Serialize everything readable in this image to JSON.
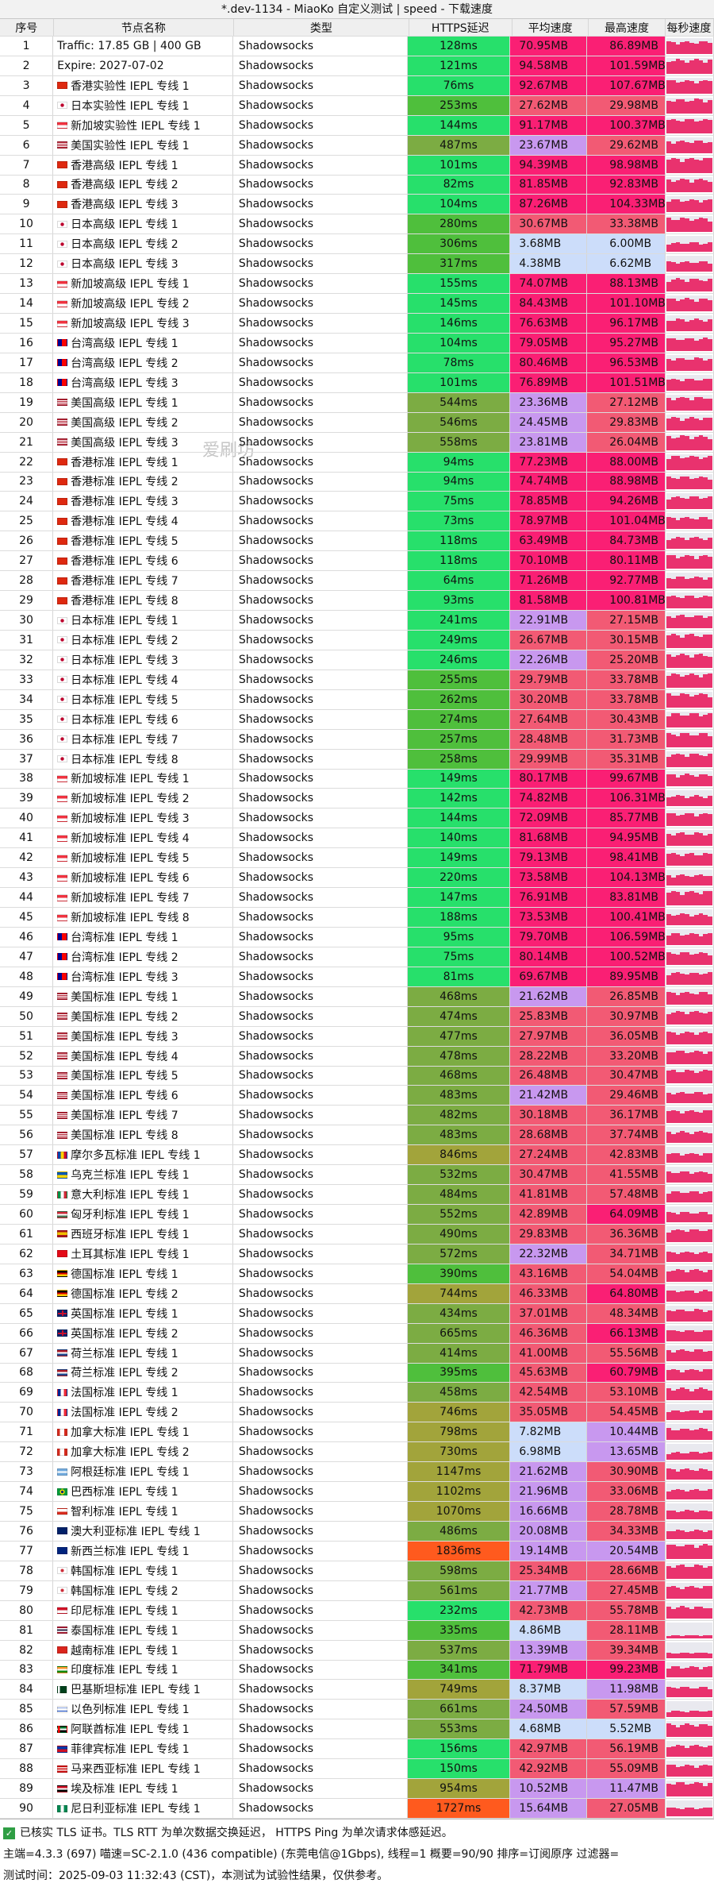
{
  "window": {
    "title": "*.dev-1134 - MiaoKo 自定义测试 | speed - 下载速度"
  },
  "headers": [
    "序号",
    "节点名称",
    "类型",
    "HTTPS延迟",
    "平均速度",
    "最高速度",
    "每秒速度"
  ],
  "colors": {
    "speed_high": "#fa1f74",
    "speed_mid": "#f25a74",
    "speed_low": "#c898ef",
    "speed_vlow": "#ccddfa",
    "lat_fast": "#27e06b",
    "lat_mid": "#4fbf3c",
    "lat_slow": "#7cac43",
    "lat_vslow": "#a2a43b",
    "lat_bad": "#ff5a1e",
    "spark": "#e9326e"
  },
  "rows": [
    {
      "idx": "1",
      "flag": "",
      "name": "Traffic: 17.85 GB | 400 GB",
      "type": "Shadowsocks",
      "lat": "128ms",
      "avg": "70.95MB",
      "max": "86.89MB"
    },
    {
      "idx": "2",
      "flag": "",
      "name": "Expire: 2027-07-02",
      "type": "Shadowsocks",
      "lat": "121ms",
      "avg": "94.58MB",
      "max": "101.59MB"
    },
    {
      "idx": "3",
      "flag": "hk",
      "name": "香港实验性 IEPL 专线 1",
      "type": "Shadowsocks",
      "lat": "76ms",
      "avg": "92.67MB",
      "max": "107.67MB"
    },
    {
      "idx": "4",
      "flag": "jp",
      "name": "日本实验性 IEPL 专线 1",
      "type": "Shadowsocks",
      "lat": "253ms",
      "avg": "27.62MB",
      "max": "29.98MB"
    },
    {
      "idx": "5",
      "flag": "sg",
      "name": "新加坡实验性 IEPL 专线 1",
      "type": "Shadowsocks",
      "lat": "144ms",
      "avg": "91.17MB",
      "max": "100.37MB"
    },
    {
      "idx": "6",
      "flag": "us",
      "name": "美国实验性 IEPL 专线 1",
      "type": "Shadowsocks",
      "lat": "487ms",
      "avg": "23.67MB",
      "max": "29.62MB"
    },
    {
      "idx": "7",
      "flag": "hk",
      "name": "香港高级 IEPL 专线 1",
      "type": "Shadowsocks",
      "lat": "101ms",
      "avg": "94.39MB",
      "max": "98.98MB"
    },
    {
      "idx": "8",
      "flag": "hk",
      "name": "香港高级 IEPL 专线 2",
      "type": "Shadowsocks",
      "lat": "82ms",
      "avg": "81.85MB",
      "max": "92.83MB"
    },
    {
      "idx": "9",
      "flag": "hk",
      "name": "香港高级 IEPL 专线 3",
      "type": "Shadowsocks",
      "lat": "104ms",
      "avg": "87.26MB",
      "max": "104.33MB"
    },
    {
      "idx": "10",
      "flag": "jp",
      "name": "日本高级 IEPL 专线 1",
      "type": "Shadowsocks",
      "lat": "280ms",
      "avg": "30.67MB",
      "max": "33.38MB"
    },
    {
      "idx": "11",
      "flag": "jp",
      "name": "日本高级 IEPL 专线 2",
      "type": "Shadowsocks",
      "lat": "306ms",
      "avg": "3.68MB",
      "max": "6.00MB"
    },
    {
      "idx": "12",
      "flag": "jp",
      "name": "日本高级 IEPL 专线 3",
      "type": "Shadowsocks",
      "lat": "317ms",
      "avg": "4.38MB",
      "max": "6.62MB"
    },
    {
      "idx": "13",
      "flag": "sg",
      "name": "新加坡高级 IEPL 专线 1",
      "type": "Shadowsocks",
      "lat": "155ms",
      "avg": "74.07MB",
      "max": "88.13MB"
    },
    {
      "idx": "14",
      "flag": "sg",
      "name": "新加坡高级 IEPL 专线 2",
      "type": "Shadowsocks",
      "lat": "145ms",
      "avg": "84.43MB",
      "max": "101.10MB"
    },
    {
      "idx": "15",
      "flag": "sg",
      "name": "新加坡高级 IEPL 专线 3",
      "type": "Shadowsocks",
      "lat": "146ms",
      "avg": "76.63MB",
      "max": "96.17MB"
    },
    {
      "idx": "16",
      "flag": "tw",
      "name": "台湾高级 IEPL 专线 1",
      "type": "Shadowsocks",
      "lat": "104ms",
      "avg": "79.05MB",
      "max": "95.27MB"
    },
    {
      "idx": "17",
      "flag": "tw",
      "name": "台湾高级 IEPL 专线 2",
      "type": "Shadowsocks",
      "lat": "78ms",
      "avg": "80.46MB",
      "max": "96.53MB"
    },
    {
      "idx": "18",
      "flag": "tw",
      "name": "台湾高级 IEPL 专线 3",
      "type": "Shadowsocks",
      "lat": "101ms",
      "avg": "76.89MB",
      "max": "101.51MB"
    },
    {
      "idx": "19",
      "flag": "us",
      "name": "美国高级 IEPL 专线 1",
      "type": "Shadowsocks",
      "lat": "544ms",
      "avg": "23.36MB",
      "max": "27.12MB"
    },
    {
      "idx": "20",
      "flag": "us",
      "name": "美国高级 IEPL 专线 2",
      "type": "Shadowsocks",
      "lat": "546ms",
      "avg": "24.45MB",
      "max": "29.83MB"
    },
    {
      "idx": "21",
      "flag": "us",
      "name": "美国高级 IEPL 专线 3",
      "type": "Shadowsocks",
      "lat": "558ms",
      "avg": "23.81MB",
      "max": "26.04MB"
    },
    {
      "idx": "22",
      "flag": "hk",
      "name": "香港标准 IEPL 专线 1",
      "type": "Shadowsocks",
      "lat": "94ms",
      "avg": "77.23MB",
      "max": "88.00MB"
    },
    {
      "idx": "23",
      "flag": "hk",
      "name": "香港标准 IEPL 专线 2",
      "type": "Shadowsocks",
      "lat": "94ms",
      "avg": "74.74MB",
      "max": "88.98MB"
    },
    {
      "idx": "24",
      "flag": "hk",
      "name": "香港标准 IEPL 专线 3",
      "type": "Shadowsocks",
      "lat": "75ms",
      "avg": "78.85MB",
      "max": "94.26MB"
    },
    {
      "idx": "25",
      "flag": "hk",
      "name": "香港标准 IEPL 专线 4",
      "type": "Shadowsocks",
      "lat": "73ms",
      "avg": "78.97MB",
      "max": "101.04MB"
    },
    {
      "idx": "26",
      "flag": "hk",
      "name": "香港标准 IEPL 专线 5",
      "type": "Shadowsocks",
      "lat": "118ms",
      "avg": "63.49MB",
      "max": "84.73MB"
    },
    {
      "idx": "27",
      "flag": "hk",
      "name": "香港标准 IEPL 专线 6",
      "type": "Shadowsocks",
      "lat": "118ms",
      "avg": "70.10MB",
      "max": "80.11MB"
    },
    {
      "idx": "28",
      "flag": "hk",
      "name": "香港标准 IEPL 专线 7",
      "type": "Shadowsocks",
      "lat": "64ms",
      "avg": "71.26MB",
      "max": "92.77MB"
    },
    {
      "idx": "29",
      "flag": "hk",
      "name": "香港标准 IEPL 专线 8",
      "type": "Shadowsocks",
      "lat": "93ms",
      "avg": "81.58MB",
      "max": "100.81MB"
    },
    {
      "idx": "30",
      "flag": "jp",
      "name": "日本标准 IEPL 专线 1",
      "type": "Shadowsocks",
      "lat": "241ms",
      "avg": "22.91MB",
      "max": "27.15MB"
    },
    {
      "idx": "31",
      "flag": "jp",
      "name": "日本标准 IEPL 专线 2",
      "type": "Shadowsocks",
      "lat": "249ms",
      "avg": "26.67MB",
      "max": "30.15MB"
    },
    {
      "idx": "32",
      "flag": "jp",
      "name": "日本标准 IEPL 专线 3",
      "type": "Shadowsocks",
      "lat": "246ms",
      "avg": "22.26MB",
      "max": "25.20MB"
    },
    {
      "idx": "33",
      "flag": "jp",
      "name": "日本标准 IEPL 专线 4",
      "type": "Shadowsocks",
      "lat": "255ms",
      "avg": "29.79MB",
      "max": "33.78MB"
    },
    {
      "idx": "34",
      "flag": "jp",
      "name": "日本标准 IEPL 专线 5",
      "type": "Shadowsocks",
      "lat": "262ms",
      "avg": "30.20MB",
      "max": "33.78MB"
    },
    {
      "idx": "35",
      "flag": "jp",
      "name": "日本标准 IEPL 专线 6",
      "type": "Shadowsocks",
      "lat": "274ms",
      "avg": "27.64MB",
      "max": "30.43MB"
    },
    {
      "idx": "36",
      "flag": "jp",
      "name": "日本标准 IEPL 专线 7",
      "type": "Shadowsocks",
      "lat": "257ms",
      "avg": "28.48MB",
      "max": "31.73MB"
    },
    {
      "idx": "37",
      "flag": "jp",
      "name": "日本标准 IEPL 专线 8",
      "type": "Shadowsocks",
      "lat": "258ms",
      "avg": "29.99MB",
      "max": "35.31MB"
    },
    {
      "idx": "38",
      "flag": "sg",
      "name": "新加坡标准 IEPL 专线 1",
      "type": "Shadowsocks",
      "lat": "149ms",
      "avg": "80.17MB",
      "max": "99.67MB"
    },
    {
      "idx": "39",
      "flag": "sg",
      "name": "新加坡标准 IEPL 专线 2",
      "type": "Shadowsocks",
      "lat": "142ms",
      "avg": "74.82MB",
      "max": "106.31MB"
    },
    {
      "idx": "40",
      "flag": "sg",
      "name": "新加坡标准 IEPL 专线 3",
      "type": "Shadowsocks",
      "lat": "144ms",
      "avg": "72.09MB",
      "max": "85.77MB"
    },
    {
      "idx": "41",
      "flag": "sg",
      "name": "新加坡标准 IEPL 专线 4",
      "type": "Shadowsocks",
      "lat": "140ms",
      "avg": "81.68MB",
      "max": "94.95MB"
    },
    {
      "idx": "42",
      "flag": "sg",
      "name": "新加坡标准 IEPL 专线 5",
      "type": "Shadowsocks",
      "lat": "149ms",
      "avg": "79.13MB",
      "max": "98.41MB"
    },
    {
      "idx": "43",
      "flag": "sg",
      "name": "新加坡标准 IEPL 专线 6",
      "type": "Shadowsocks",
      "lat": "220ms",
      "avg": "73.58MB",
      "max": "104.13MB"
    },
    {
      "idx": "44",
      "flag": "sg",
      "name": "新加坡标准 IEPL 专线 7",
      "type": "Shadowsocks",
      "lat": "147ms",
      "avg": "76.91MB",
      "max": "83.81MB"
    },
    {
      "idx": "45",
      "flag": "sg",
      "name": "新加坡标准 IEPL 专线 8",
      "type": "Shadowsocks",
      "lat": "188ms",
      "avg": "73.53MB",
      "max": "100.41MB"
    },
    {
      "idx": "46",
      "flag": "tw",
      "name": "台湾标准 IEPL 专线 1",
      "type": "Shadowsocks",
      "lat": "95ms",
      "avg": "79.70MB",
      "max": "106.59MB"
    },
    {
      "idx": "47",
      "flag": "tw",
      "name": "台湾标准 IEPL 专线 2",
      "type": "Shadowsocks",
      "lat": "75ms",
      "avg": "80.14MB",
      "max": "100.52MB"
    },
    {
      "idx": "48",
      "flag": "tw",
      "name": "台湾标准 IEPL 专线 3",
      "type": "Shadowsocks",
      "lat": "81ms",
      "avg": "69.67MB",
      "max": "89.95MB"
    },
    {
      "idx": "49",
      "flag": "us",
      "name": "美国标准 IEPL 专线 1",
      "type": "Shadowsocks",
      "lat": "468ms",
      "avg": "21.62MB",
      "max": "26.85MB"
    },
    {
      "idx": "50",
      "flag": "us",
      "name": "美国标准 IEPL 专线 2",
      "type": "Shadowsocks",
      "lat": "474ms",
      "avg": "25.83MB",
      "max": "30.97MB"
    },
    {
      "idx": "51",
      "flag": "us",
      "name": "美国标准 IEPL 专线 3",
      "type": "Shadowsocks",
      "lat": "477ms",
      "avg": "27.97MB",
      "max": "36.05MB"
    },
    {
      "idx": "52",
      "flag": "us",
      "name": "美国标准 IEPL 专线 4",
      "type": "Shadowsocks",
      "lat": "478ms",
      "avg": "28.22MB",
      "max": "33.20MB"
    },
    {
      "idx": "53",
      "flag": "us",
      "name": "美国标准 IEPL 专线 5",
      "type": "Shadowsocks",
      "lat": "468ms",
      "avg": "26.48MB",
      "max": "30.47MB"
    },
    {
      "idx": "54",
      "flag": "us",
      "name": "美国标准 IEPL 专线 6",
      "type": "Shadowsocks",
      "lat": "483ms",
      "avg": "21.42MB",
      "max": "29.46MB"
    },
    {
      "idx": "55",
      "flag": "us",
      "name": "美国标准 IEPL 专线 7",
      "type": "Shadowsocks",
      "lat": "482ms",
      "avg": "30.18MB",
      "max": "36.17MB"
    },
    {
      "idx": "56",
      "flag": "us",
      "name": "美国标准 IEPL 专线 8",
      "type": "Shadowsocks",
      "lat": "483ms",
      "avg": "28.68MB",
      "max": "37.74MB"
    },
    {
      "idx": "57",
      "flag": "md",
      "name": "摩尔多瓦标准 IEPL 专线 1",
      "type": "Shadowsocks",
      "lat": "846ms",
      "avg": "27.24MB",
      "max": "42.83MB"
    },
    {
      "idx": "58",
      "flag": "ua",
      "name": "乌克兰标准 IEPL 专线 1",
      "type": "Shadowsocks",
      "lat": "532ms",
      "avg": "30.47MB",
      "max": "41.55MB"
    },
    {
      "idx": "59",
      "flag": "it",
      "name": "意大利标准 IEPL 专线 1",
      "type": "Shadowsocks",
      "lat": "484ms",
      "avg": "41.81MB",
      "max": "57.48MB"
    },
    {
      "idx": "60",
      "flag": "hu",
      "name": "匈牙利标准 IEPL 专线 1",
      "type": "Shadowsocks",
      "lat": "552ms",
      "avg": "42.89MB",
      "max": "64.09MB"
    },
    {
      "idx": "61",
      "flag": "es",
      "name": "西班牙标准 IEPL 专线 1",
      "type": "Shadowsocks",
      "lat": "490ms",
      "avg": "29.83MB",
      "max": "36.36MB"
    },
    {
      "idx": "62",
      "flag": "tr",
      "name": "土耳其标准 IEPL 专线 1",
      "type": "Shadowsocks",
      "lat": "572ms",
      "avg": "22.32MB",
      "max": "34.71MB"
    },
    {
      "idx": "63",
      "flag": "de",
      "name": "德国标准 IEPL 专线 1",
      "type": "Shadowsocks",
      "lat": "390ms",
      "avg": "43.16MB",
      "max": "54.04MB"
    },
    {
      "idx": "64",
      "flag": "de",
      "name": "德国标准 IEPL 专线 2",
      "type": "Shadowsocks",
      "lat": "744ms",
      "avg": "46.33MB",
      "max": "64.80MB"
    },
    {
      "idx": "65",
      "flag": "gb",
      "name": "英国标准 IEPL 专线 1",
      "type": "Shadowsocks",
      "lat": "434ms",
      "avg": "37.01MB",
      "max": "48.34MB"
    },
    {
      "idx": "66",
      "flag": "gb",
      "name": "英国标准 IEPL 专线 2",
      "type": "Shadowsocks",
      "lat": "665ms",
      "avg": "46.36MB",
      "max": "66.13MB"
    },
    {
      "idx": "67",
      "flag": "nl",
      "name": "荷兰标准 IEPL 专线 1",
      "type": "Shadowsocks",
      "lat": "414ms",
      "avg": "41.00MB",
      "max": "55.56MB"
    },
    {
      "idx": "68",
      "flag": "nl",
      "name": "荷兰标准 IEPL 专线 2",
      "type": "Shadowsocks",
      "lat": "395ms",
      "avg": "45.63MB",
      "max": "60.79MB"
    },
    {
      "idx": "69",
      "flag": "fr",
      "name": "法国标准 IEPL 专线 1",
      "type": "Shadowsocks",
      "lat": "458ms",
      "avg": "42.54MB",
      "max": "53.10MB"
    },
    {
      "idx": "70",
      "flag": "fr",
      "name": "法国标准 IEPL 专线 2",
      "type": "Shadowsocks",
      "lat": "746ms",
      "avg": "35.05MB",
      "max": "54.45MB"
    },
    {
      "idx": "71",
      "flag": "ca",
      "name": "加拿大标准 IEPL 专线 1",
      "type": "Shadowsocks",
      "lat": "798ms",
      "avg": "7.82MB",
      "max": "10.44MB"
    },
    {
      "idx": "72",
      "flag": "ca",
      "name": "加拿大标准 IEPL 专线 2",
      "type": "Shadowsocks",
      "lat": "730ms",
      "avg": "6.98MB",
      "max": "13.65MB"
    },
    {
      "idx": "73",
      "flag": "ar",
      "name": "阿根廷标准 IEPL 专线 1",
      "type": "Shadowsocks",
      "lat": "1147ms",
      "avg": "21.62MB",
      "max": "30.90MB"
    },
    {
      "idx": "74",
      "flag": "br",
      "name": "巴西标准 IEPL 专线 1",
      "type": "Shadowsocks",
      "lat": "1102ms",
      "avg": "21.96MB",
      "max": "33.06MB"
    },
    {
      "idx": "75",
      "flag": "cl",
      "name": "智利标准 IEPL 专线 1",
      "type": "Shadowsocks",
      "lat": "1070ms",
      "avg": "16.66MB",
      "max": "28.78MB"
    },
    {
      "idx": "76",
      "flag": "au",
      "name": "澳大利亚标准 IEPL 专线 1",
      "type": "Shadowsocks",
      "lat": "486ms",
      "avg": "20.08MB",
      "max": "34.33MB"
    },
    {
      "idx": "77",
      "flag": "nz",
      "name": "新西兰标准 IEPL 专线 1",
      "type": "Shadowsocks",
      "lat": "1836ms",
      "avg": "19.14MB",
      "max": "20.54MB"
    },
    {
      "idx": "78",
      "flag": "kr",
      "name": "韩国标准 IEPL 专线 1",
      "type": "Shadowsocks",
      "lat": "598ms",
      "avg": "25.34MB",
      "max": "28.66MB"
    },
    {
      "idx": "79",
      "flag": "kr",
      "name": "韩国标准 IEPL 专线 2",
      "type": "Shadowsocks",
      "lat": "561ms",
      "avg": "21.77MB",
      "max": "27.45MB"
    },
    {
      "idx": "80",
      "flag": "in",
      "name": "印尼标准 IEPL 专线 1",
      "type": "Shadowsocks",
      "lat": "232ms",
      "avg": "42.73MB",
      "max": "55.78MB"
    },
    {
      "idx": "81",
      "flag": "th",
      "name": "泰国标准 IEPL 专线 1",
      "type": "Shadowsocks",
      "lat": "335ms",
      "avg": "4.86MB",
      "max": "28.11MB"
    },
    {
      "idx": "82",
      "flag": "vn",
      "name": "越南标准 IEPL 专线 1",
      "type": "Shadowsocks",
      "lat": "537ms",
      "avg": "13.39MB",
      "max": "39.34MB"
    },
    {
      "idx": "83",
      "flag": "ind",
      "name": "印度标准 IEPL 专线 1",
      "type": "Shadowsocks",
      "lat": "341ms",
      "avg": "71.79MB",
      "max": "99.23MB"
    },
    {
      "idx": "84",
      "flag": "pk",
      "name": "巴基斯坦标准 IEPL 专线 1",
      "type": "Shadowsocks",
      "lat": "749ms",
      "avg": "8.37MB",
      "max": "11.98MB"
    },
    {
      "idx": "85",
      "flag": "il",
      "name": "以色列标准 IEPL 专线 1",
      "type": "Shadowsocks",
      "lat": "661ms",
      "avg": "24.50MB",
      "max": "57.59MB"
    },
    {
      "idx": "86",
      "flag": "ae",
      "name": "阿联酋标准 IEPL 专线 1",
      "type": "Shadowsocks",
      "lat": "553ms",
      "avg": "4.68MB",
      "max": "5.52MB"
    },
    {
      "idx": "87",
      "flag": "ph",
      "name": "菲律宾标准 IEPL 专线 1",
      "type": "Shadowsocks",
      "lat": "156ms",
      "avg": "42.97MB",
      "max": "56.19MB"
    },
    {
      "idx": "88",
      "flag": "my",
      "name": "马来西亚标准 IEPL 专线 1",
      "type": "Shadowsocks",
      "lat": "150ms",
      "avg": "42.92MB",
      "max": "55.09MB"
    },
    {
      "idx": "89",
      "flag": "eg",
      "name": "埃及标准 IEPL 专线 1",
      "type": "Shadowsocks",
      "lat": "954ms",
      "avg": "10.52MB",
      "max": "11.47MB"
    },
    {
      "idx": "90",
      "flag": "ng",
      "name": "尼日利亚标准 IEPL 专线 1",
      "type": "Shadowsocks",
      "lat": "1727ms",
      "avg": "15.64MB",
      "max": "27.05MB"
    }
  ],
  "watermark": "爱刷坊",
  "footer": {
    "line1": "已核实 TLS 证书。TLS RTT 为单次数据交换延迟， HTTPS Ping 为单次请求体感延迟。",
    "line2": "主端=4.3.3 (697) 喵速=SC-2.1.0 (436 compatible) (东莞电信@1Gbps), 线程=1 概要=90/90 排序=订阅原序 过滤器=",
    "line3": "测试时间：2025-09-03 11:32:43 (CST)，本测试为试验性结果，仅供参考。"
  }
}
